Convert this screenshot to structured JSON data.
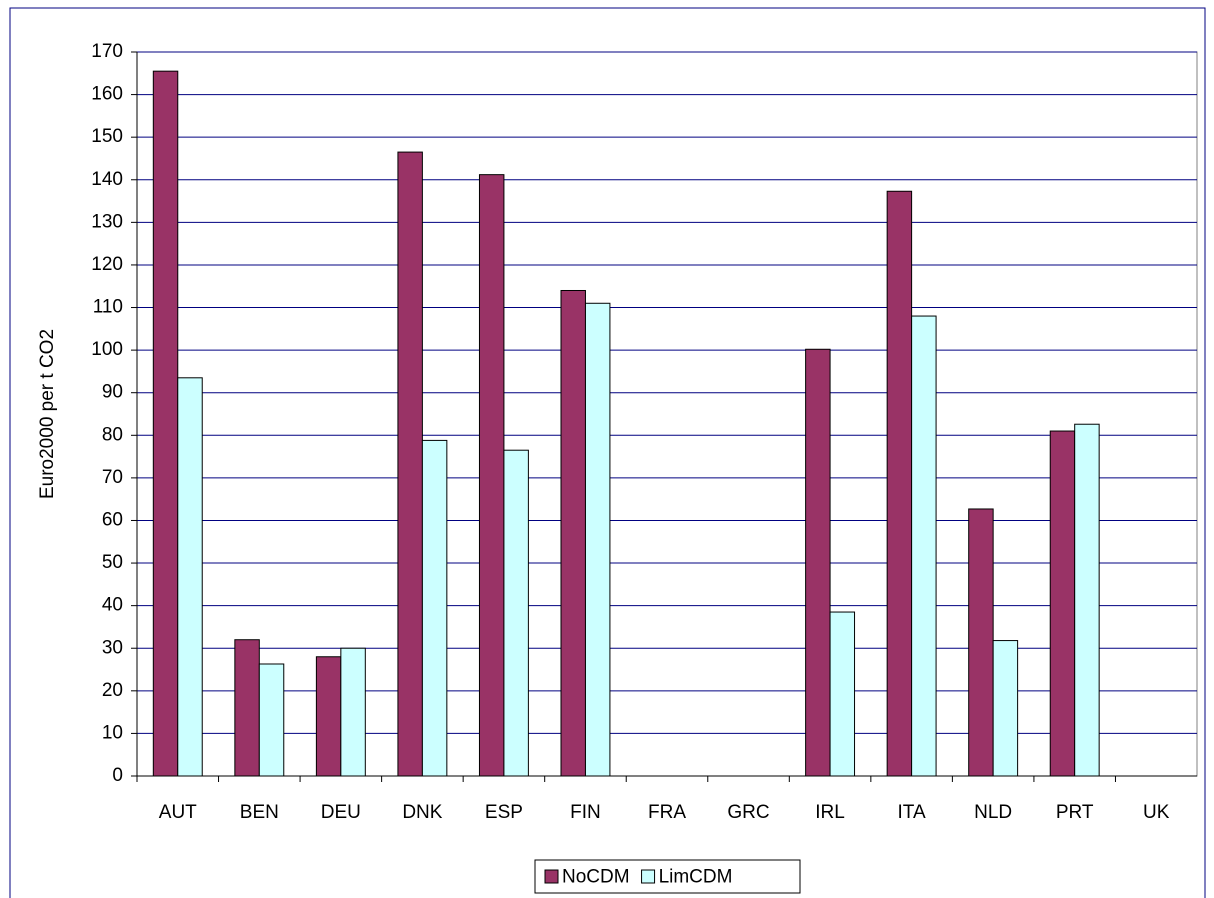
{
  "chart_data": {
    "type": "bar",
    "y_label": "Euro2000 per t CO2",
    "categories": [
      "AUT",
      "BEN",
      "DEU",
      "DNK",
      "ESP",
      "FIN",
      "FRA",
      "GRC",
      "IRL",
      "ITA",
      "NLD",
      "PRT",
      "UK"
    ],
    "series": [
      {
        "name": "NoCDM",
        "color": "#993366",
        "values": [
          165.5,
          32,
          28,
          146.5,
          141.2,
          114,
          0,
          0,
          100.2,
          137.3,
          62.7,
          81,
          0
        ]
      },
      {
        "name": "LimCDM",
        "color": "#ccffff",
        "values": [
          93.5,
          26.3,
          30,
          78.8,
          76.5,
          111,
          0,
          0,
          38.5,
          108,
          31.8,
          82.6,
          0
        ]
      }
    ],
    "ylim": [
      0,
      170
    ],
    "yticks": [
      0,
      10,
      20,
      30,
      40,
      50,
      60,
      70,
      80,
      90,
      100,
      110,
      120,
      130,
      140,
      150,
      160,
      170
    ],
    "grid": true,
    "legend": "bottom"
  }
}
